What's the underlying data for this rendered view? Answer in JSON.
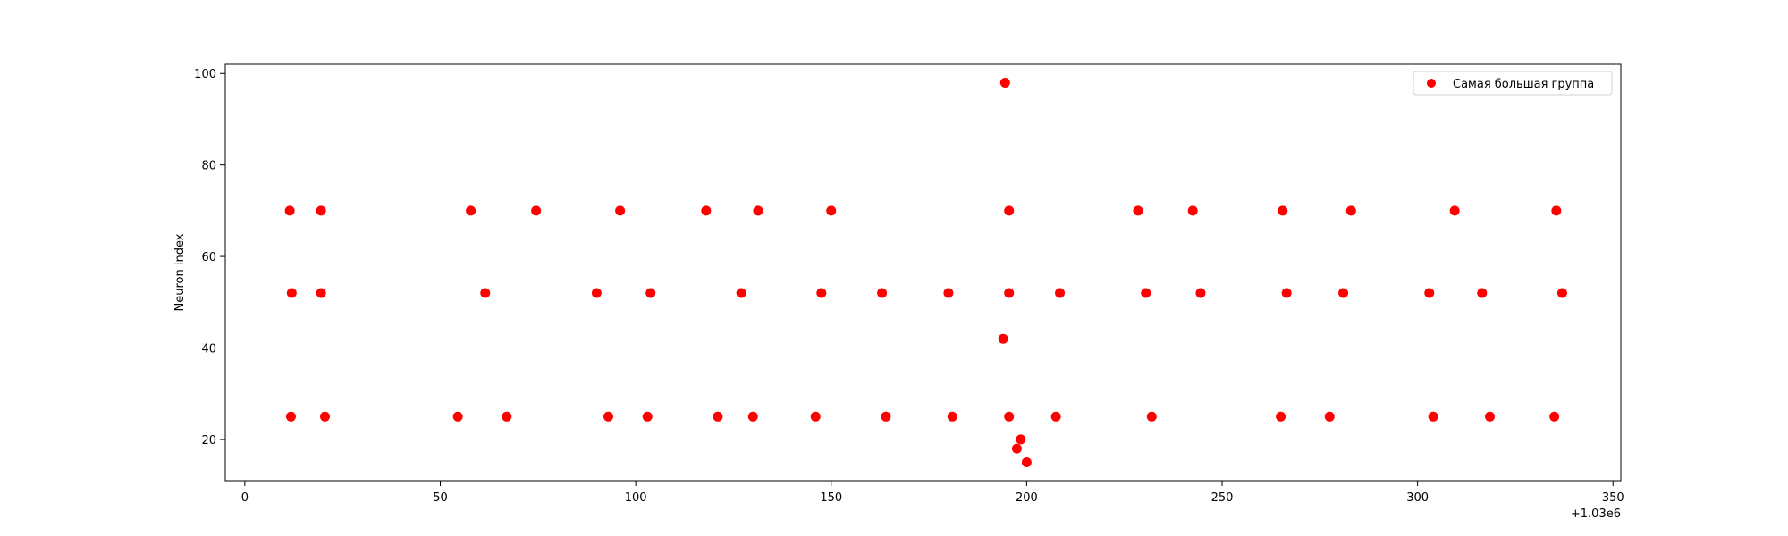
{
  "chart_data": {
    "type": "scatter",
    "title": "",
    "xlabel": "",
    "ylabel": "Neuron index",
    "x_offset_label": "+1.03e6",
    "xlim": [
      -5,
      352
    ],
    "ylim": [
      11,
      102
    ],
    "x_ticks": [
      0,
      50,
      100,
      150,
      200,
      250,
      300,
      350
    ],
    "y_ticks": [
      20,
      40,
      60,
      80,
      100
    ],
    "grid": false,
    "legend_position": "top-right",
    "series": [
      {
        "name": "Самая большая группа",
        "color": "#ff0000",
        "marker": "circle",
        "points": [
          [
            11.5,
            70
          ],
          [
            19.5,
            70
          ],
          [
            57.8,
            70
          ],
          [
            74.5,
            70
          ],
          [
            96.0,
            70
          ],
          [
            118.0,
            70
          ],
          [
            131.3,
            70
          ],
          [
            150.0,
            70
          ],
          [
            195.5,
            70
          ],
          [
            228.5,
            70
          ],
          [
            242.5,
            70
          ],
          [
            265.5,
            70
          ],
          [
            283.0,
            70
          ],
          [
            309.5,
            70
          ],
          [
            335.5,
            70
          ],
          [
            12.0,
            52
          ],
          [
            19.5,
            52
          ],
          [
            61.5,
            52
          ],
          [
            90.0,
            52
          ],
          [
            103.8,
            52
          ],
          [
            127.0,
            52
          ],
          [
            147.5,
            52
          ],
          [
            163.0,
            52
          ],
          [
            180.0,
            52
          ],
          [
            195.5,
            52
          ],
          [
            208.5,
            52
          ],
          [
            230.5,
            52
          ],
          [
            244.5,
            52
          ],
          [
            266.5,
            52
          ],
          [
            281.0,
            52
          ],
          [
            303.0,
            52
          ],
          [
            316.5,
            52
          ],
          [
            337.0,
            52
          ],
          [
            194.0,
            42
          ],
          [
            194.5,
            98
          ],
          [
            11.8,
            25
          ],
          [
            20.5,
            25
          ],
          [
            54.5,
            25
          ],
          [
            67.0,
            25
          ],
          [
            93.0,
            25
          ],
          [
            103.0,
            25
          ],
          [
            121.0,
            25
          ],
          [
            130.0,
            25
          ],
          [
            146.0,
            25
          ],
          [
            164.0,
            25
          ],
          [
            181.0,
            25
          ],
          [
            195.5,
            25
          ],
          [
            207.5,
            25
          ],
          [
            232.0,
            25
          ],
          [
            265.0,
            25
          ],
          [
            277.5,
            25
          ],
          [
            304.0,
            25
          ],
          [
            318.5,
            25
          ],
          [
            335.0,
            25
          ],
          [
            198.5,
            20
          ],
          [
            197.5,
            18
          ],
          [
            200.0,
            15
          ]
        ]
      }
    ]
  }
}
